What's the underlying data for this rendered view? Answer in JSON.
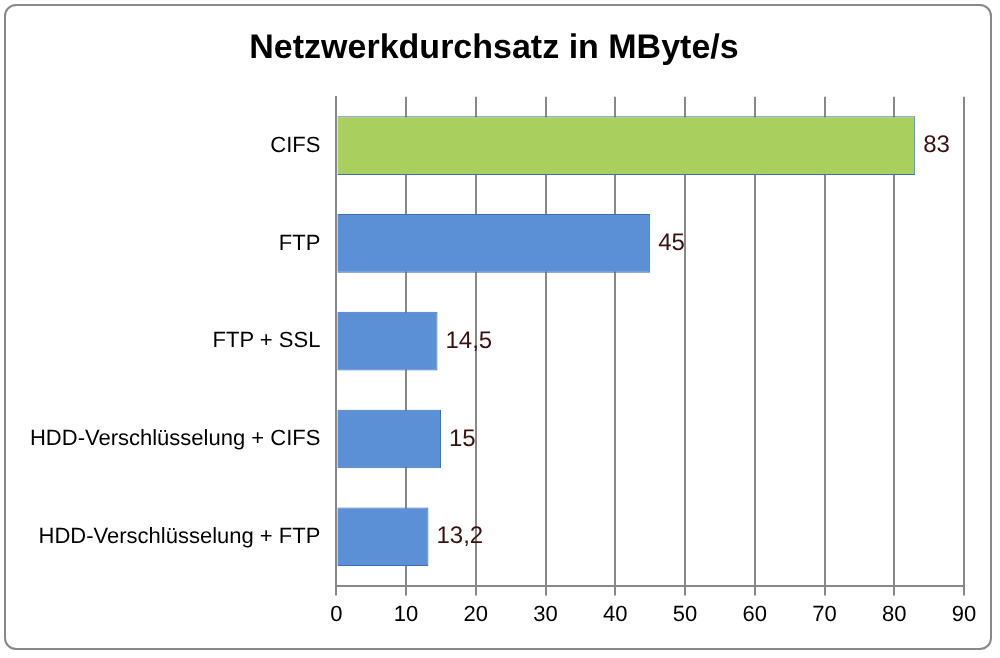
{
  "chart_data": {
    "type": "bar",
    "orientation": "horizontal",
    "title": "Netzwerkdurchsatz in MByte/s",
    "categories": [
      "CIFS",
      "FTP",
      "FTP + SSL",
      "HDD-Verschlüsselung + CIFS",
      "HDD-Verschlüsselung + FTP"
    ],
    "values": [
      83,
      45,
      14.5,
      15,
      13.2
    ],
    "colors": [
      "#a9d05e",
      "#5b8fd6",
      "#5b8fd6",
      "#5b8fd6",
      "#5b8fd6"
    ],
    "value_labels": [
      "83",
      "45",
      "14,5",
      "15",
      "13,2"
    ],
    "xlim": [
      0,
      90
    ],
    "xticks": [
      0,
      10,
      20,
      30,
      40,
      50,
      60,
      70,
      80,
      90
    ],
    "grid": "x",
    "legend": false
  }
}
